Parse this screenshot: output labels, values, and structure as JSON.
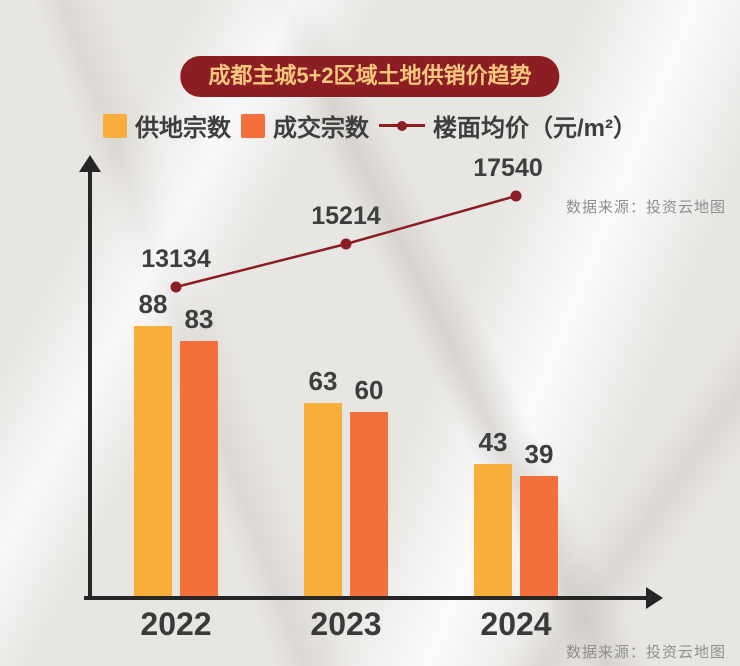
{
  "title": "成都主城5+2区域土地供销价趋势",
  "source_note": "数据来源：投资云地图",
  "legend": {
    "supply": "供地宗数",
    "deal": "成交宗数",
    "price": "楼面均价（元/m²）"
  },
  "colors": {
    "supply_bar": "#F9AE3B",
    "deal_bar": "#F3703B",
    "price_line": "#8C1D22",
    "badge_bg": "#8C1D22",
    "badge_text": "#F8C87E",
    "text_dark": "#3E3E3E",
    "source_text": "#8F8F8F"
  },
  "chart_data": {
    "type": "bar+line",
    "title": "成都主城5+2区域土地供销价趋势",
    "categories": [
      "2022",
      "2023",
      "2024"
    ],
    "series": [
      {
        "name": "供地宗数",
        "type": "bar",
        "values": [
          88,
          63,
          43
        ],
        "color": "#F9AE3B"
      },
      {
        "name": "成交宗数",
        "type": "bar",
        "values": [
          83,
          60,
          39
        ],
        "color": "#F3703B"
      },
      {
        "name": "楼面均价（元/m²）",
        "type": "line",
        "values": [
          13134,
          15214,
          17540
        ],
        "color": "#8C1D22"
      }
    ],
    "bar_axis_range": [
      0,
      140
    ],
    "grid": false,
    "legend_position": "top",
    "value_labels": true
  }
}
